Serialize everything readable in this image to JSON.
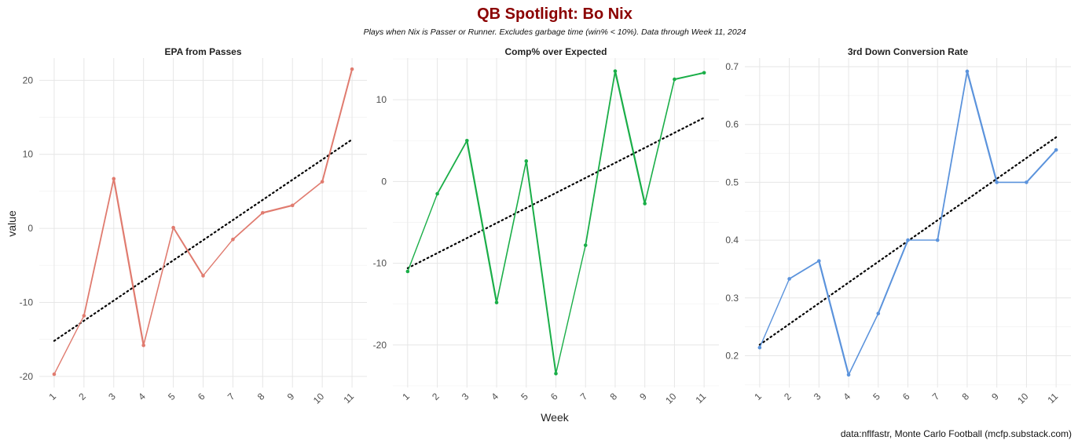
{
  "title": "QB Spotlight: Bo Nix",
  "subtitle": "Plays when Nix is Passer or Runner. Excludes garbage time (win% < 10%). Data through Week 11, 2024",
  "caption": "data:nflfastr, Monte Carlo Football (mcfp.substack.com)",
  "xlabel": "Week",
  "ylabel": "value",
  "chart_data": [
    {
      "type": "line",
      "title": "EPA from Passes",
      "color": "#e07b6f",
      "x": [
        1,
        2,
        3,
        4,
        5,
        6,
        7,
        8,
        9,
        10,
        11
      ],
      "y": [
        -19.7,
        -11.8,
        6.7,
        -15.8,
        0.1,
        -6.4,
        -1.5,
        2.1,
        3.1,
        6.3,
        21.5
      ],
      "xticks": [
        "1",
        "2",
        "3",
        "4",
        "5",
        "6",
        "7",
        "8",
        "9",
        "10",
        "11"
      ],
      "yticks": [
        -20,
        -10,
        0,
        10,
        20
      ],
      "ytick_labels": [
        "-20",
        "-10",
        "0",
        "10",
        "20"
      ],
      "ylim": [
        -21.5,
        23.0
      ],
      "trend": [
        -15.2,
        12.0
      ],
      "grid": true
    },
    {
      "type": "line",
      "title": "Comp% over Expected",
      "color": "#1aae48",
      "x": [
        1,
        2,
        3,
        4,
        5,
        6,
        7,
        8,
        9,
        10,
        11
      ],
      "y": [
        -11.0,
        -1.5,
        5.0,
        -14.8,
        2.5,
        -23.5,
        -7.8,
        13.5,
        -2.7,
        12.5,
        13.3
      ],
      "xticks": [
        "1",
        "2",
        "3",
        "4",
        "5",
        "6",
        "7",
        "8",
        "9",
        "10",
        "11"
      ],
      "yticks": [
        -20,
        -10,
        0,
        10
      ],
      "ytick_labels": [
        "-20",
        "-10",
        "0",
        "10"
      ],
      "ylim": [
        -25.2,
        15.1
      ],
      "trend": [
        -10.6,
        7.8
      ],
      "grid": true
    },
    {
      "type": "line",
      "title": "3rd Down Conversion Rate",
      "color": "#5b93dc",
      "x": [
        1,
        2,
        3,
        4,
        5,
        6,
        7,
        8,
        9,
        10,
        11
      ],
      "y": [
        0.214,
        0.333,
        0.364,
        0.167,
        0.273,
        0.4,
        0.4,
        0.692,
        0.5,
        0.5,
        0.556
      ],
      "xticks": [
        "1",
        "2",
        "3",
        "4",
        "5",
        "6",
        "7",
        "8",
        "9",
        "10",
        "11"
      ],
      "yticks": [
        0.2,
        0.3,
        0.4,
        0.5,
        0.6,
        0.7
      ],
      "ytick_labels": [
        "0.2",
        "0.3",
        "0.4",
        "0.5",
        "0.6",
        "0.7"
      ],
      "ylim": [
        0.145,
        0.715
      ],
      "trend": [
        0.219,
        0.578
      ],
      "grid": true
    }
  ]
}
